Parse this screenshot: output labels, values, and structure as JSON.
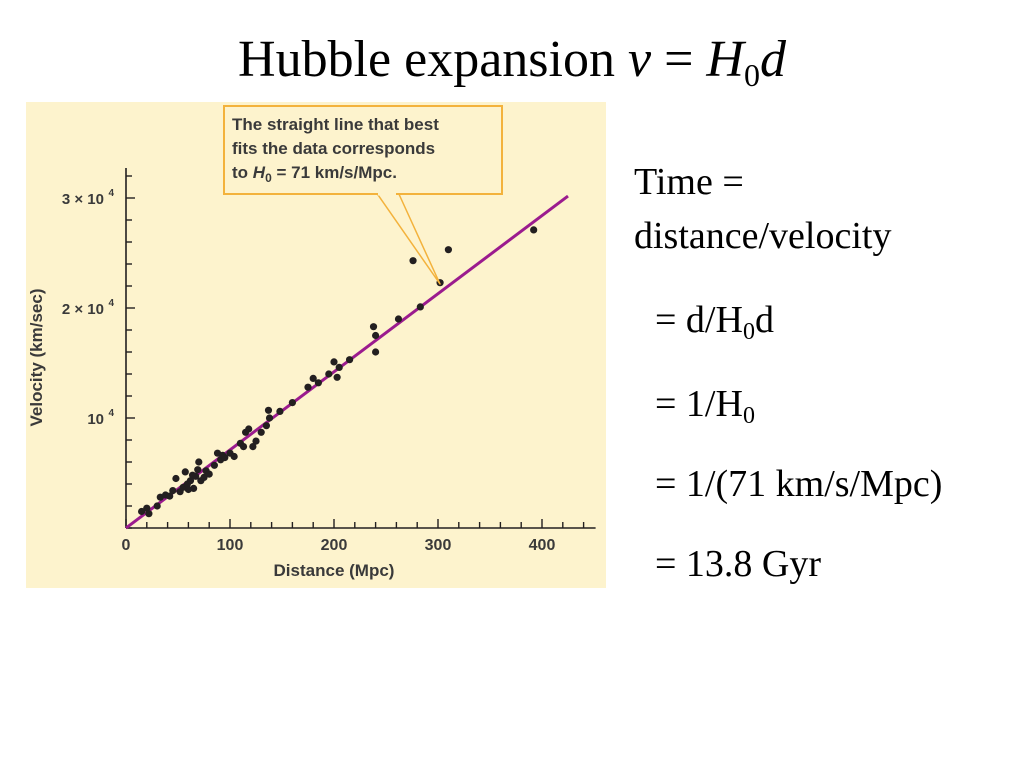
{
  "title": {
    "prefix": "Hubble expansion ",
    "v": "v",
    "eq": " = ",
    "H": "H",
    "sub": "0",
    "d": "d"
  },
  "callout": {
    "line1": "The straight line that best",
    "line2": "fits the data corresponds",
    "line3_prefix": "to ",
    "line3_H": "H",
    "line3_sub": "0",
    "line3_rest": " = 71 km/s/Mpc."
  },
  "derivation": {
    "line1": "Time =",
    "line2": "distance/velocity",
    "line3_a": "= d/H",
    "line3_sub": "0",
    "line3_b": "d",
    "line4_a": "= 1/H",
    "line4_sub": "0",
    "line5": "= 1/(71 km/s/Mpc)",
    "line6": "= 13.8 Gyr"
  },
  "colors": {
    "background": "#fdf3cd",
    "fit_line": "#9b1b8e",
    "callout_border": "#f3b23c",
    "callout_fill": "#fdf3cd",
    "points": "#231f20",
    "axis": "#231f20"
  },
  "chart_data": {
    "type": "scatter",
    "xlabel": "Distance (Mpc)",
    "ylabel": "Velocity (km/sec)",
    "xlim": [
      0,
      440
    ],
    "ylim": [
      0,
      32000
    ],
    "x_ticks": [
      0,
      100,
      200,
      300,
      400
    ],
    "x_tick_labels": [
      "0",
      "100",
      "200",
      "300",
      "400"
    ],
    "y_ticks": [
      10000,
      20000,
      30000
    ],
    "y_tick_labels": [
      {
        "base": "10",
        "exp": "4"
      },
      {
        "base": "2 × 10",
        "exp": "4"
      },
      {
        "base": "3 × 10",
        "exp": "4"
      }
    ],
    "fit": {
      "slope": 71,
      "x_range": [
        0,
        425
      ]
    },
    "points": [
      [
        15,
        1500
      ],
      [
        20,
        1800
      ],
      [
        22,
        1300
      ],
      [
        30,
        2000
      ],
      [
        33,
        2800
      ],
      [
        38,
        3000
      ],
      [
        42,
        2900
      ],
      [
        45,
        3400
      ],
      [
        48,
        4500
      ],
      [
        52,
        3300
      ],
      [
        55,
        3700
      ],
      [
        57,
        5100
      ],
      [
        59,
        4000
      ],
      [
        60,
        3500
      ],
      [
        62,
        4300
      ],
      [
        64,
        4800
      ],
      [
        65,
        3600
      ],
      [
        67,
        4700
      ],
      [
        69,
        5300
      ],
      [
        70,
        6000
      ],
      [
        72,
        4300
      ],
      [
        75,
        4600
      ],
      [
        77,
        5200
      ],
      [
        80,
        4900
      ],
      [
        85,
        5700
      ],
      [
        88,
        6800
      ],
      [
        91,
        6200
      ],
      [
        93,
        6600
      ],
      [
        95,
        6400
      ],
      [
        100,
        6800
      ],
      [
        104,
        6500
      ],
      [
        110,
        7700
      ],
      [
        113,
        7400
      ],
      [
        115,
        8700
      ],
      [
        118,
        9000
      ],
      [
        122,
        7400
      ],
      [
        125,
        7900
      ],
      [
        130,
        8700
      ],
      [
        135,
        9300
      ],
      [
        137,
        10700
      ],
      [
        138,
        10000
      ],
      [
        148,
        10600
      ],
      [
        160,
        11400
      ],
      [
        175,
        12800
      ],
      [
        180,
        13600
      ],
      [
        185,
        13200
      ],
      [
        195,
        14000
      ],
      [
        200,
        15100
      ],
      [
        203,
        13700
      ],
      [
        205,
        14600
      ],
      [
        215,
        15300
      ],
      [
        238,
        18300
      ],
      [
        240,
        17500
      ],
      [
        240,
        16000
      ],
      [
        262,
        19000
      ],
      [
        276,
        24300
      ],
      [
        283,
        20100
      ],
      [
        302,
        22300
      ],
      [
        310,
        25300
      ],
      [
        392,
        27100
      ]
    ]
  }
}
